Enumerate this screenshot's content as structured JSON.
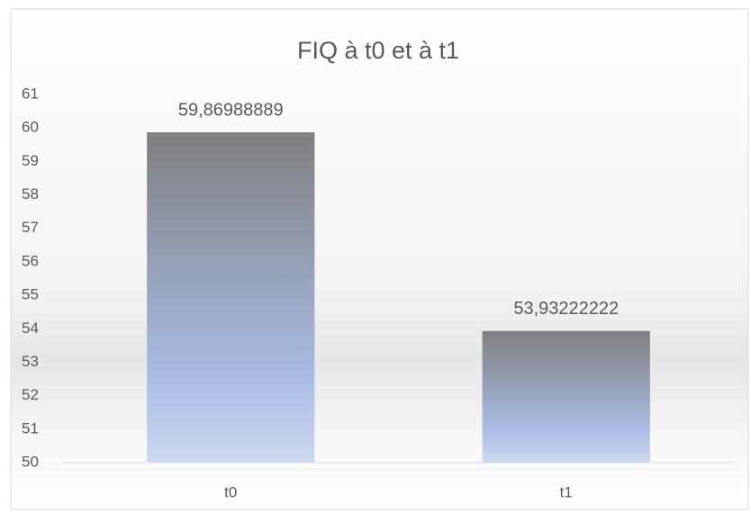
{
  "chart_data": {
    "type": "bar",
    "title": "FIQ à t0 et à t1",
    "categories": [
      "t0",
      "t1"
    ],
    "values": [
      59.86988889,
      53.93222222
    ],
    "value_labels": [
      "59,86988889",
      "53,93222222"
    ],
    "ylim": [
      50,
      61
    ],
    "yticks": [
      50,
      51,
      52,
      53,
      54,
      55,
      56,
      57,
      58,
      59,
      60,
      61
    ],
    "grid": false
  }
}
